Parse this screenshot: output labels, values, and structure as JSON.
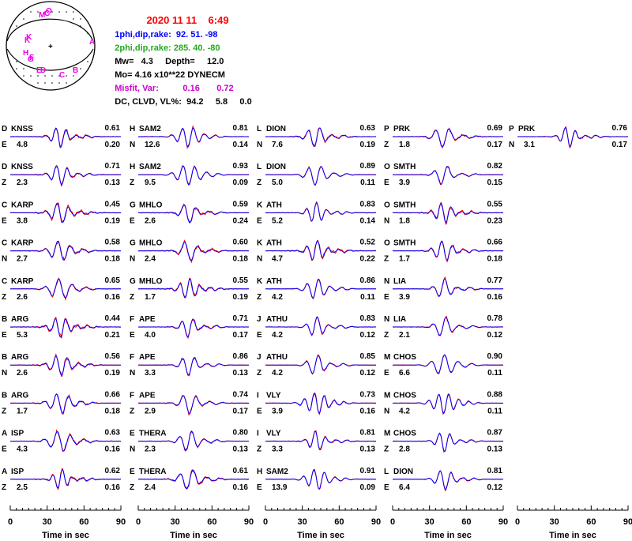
{
  "header": {
    "title_date": "2020 11 11",
    "title_time": "6:49",
    "np1_label": "1phi,dip,rake:",
    "np1_values": "92. 51. -98",
    "np2_label": "2phi,dip,rake:",
    "np2_values": "285. 40. -80",
    "mw_label": "Mw=",
    "mw_value": "4.3",
    "depth_label": "Depth=",
    "depth_value": "12.0",
    "mo_label": "Mo=",
    "mo_value": "4.16 x10**22 DYNECM",
    "misfit_label": "Misfit, Var:",
    "misfit_value": "0.16",
    "var_value": "0.72",
    "dc_label": "DC, CLVD, VL%:",
    "dc_value": "94.2",
    "clvd_value": "5.8",
    "vl_value": "0.0"
  },
  "beachball": {
    "station_letters": [
      "M",
      "C",
      "O",
      "K",
      "K",
      "A",
      "H",
      "G",
      "F",
      "E",
      "D",
      "C",
      "B"
    ],
    "colors": {
      "stations": "#ee00ee",
      "outline": "#000000"
    }
  },
  "colors": {
    "observed": "#ff0000",
    "synthetic": "#0000ff",
    "title": "#ff0000",
    "np1": "#0000ff",
    "np2": "#22aa22",
    "misfit": "#cc00cc"
  },
  "chart_data": {
    "type": "line",
    "x_axis": {
      "label": "Time in sec",
      "range": [
        0,
        90
      ],
      "ticks": [
        0,
        30,
        60,
        90
      ]
    },
    "columns": [
      [
        {
          "code": "D",
          "station": "KNSS",
          "comp": "E",
          "dist": "4.8",
          "corr": "0.61",
          "shift": "0.20"
        },
        {
          "code": "D",
          "station": "KNSS",
          "comp": "Z",
          "dist": "2.3",
          "corr": "0.71",
          "shift": "0.13"
        },
        {
          "code": "C",
          "station": "KARP",
          "comp": "E",
          "dist": "3.8",
          "corr": "0.45",
          "shift": "0.19"
        },
        {
          "code": "C",
          "station": "KARP",
          "comp": "N",
          "dist": "2.7",
          "corr": "0.58",
          "shift": "0.18"
        },
        {
          "code": "C",
          "station": "KARP",
          "comp": "Z",
          "dist": "2.6",
          "corr": "0.65",
          "shift": "0.16"
        },
        {
          "code": "B",
          "station": "ARG",
          "comp": "E",
          "dist": "5.3",
          "corr": "0.44",
          "shift": "0.21"
        },
        {
          "code": "B",
          "station": "ARG",
          "comp": "N",
          "dist": "2.6",
          "corr": "0.56",
          "shift": "0.19"
        },
        {
          "code": "B",
          "station": "ARG",
          "comp": "Z",
          "dist": "1.7",
          "corr": "0.66",
          "shift": "0.18"
        },
        {
          "code": "A",
          "station": "ISP",
          "comp": "E",
          "dist": "4.3",
          "corr": "0.63",
          "shift": "0.16"
        },
        {
          "code": "A",
          "station": "ISP",
          "comp": "Z",
          "dist": "2.5",
          "corr": "0.62",
          "shift": "0.16"
        }
      ],
      [
        {
          "code": "H",
          "station": "SAM2",
          "comp": "N",
          "dist": "12.6",
          "corr": "0.81",
          "shift": "0.14"
        },
        {
          "code": "H",
          "station": "SAM2",
          "comp": "Z",
          "dist": "9.5",
          "corr": "0.93",
          "shift": "0.09"
        },
        {
          "code": "G",
          "station": "MHLO",
          "comp": "E",
          "dist": "2.6",
          "corr": "0.59",
          "shift": "0.24"
        },
        {
          "code": "G",
          "station": "MHLO",
          "comp": "N",
          "dist": "2.4",
          "corr": "0.60",
          "shift": "0.18"
        },
        {
          "code": "G",
          "station": "MHLO",
          "comp": "Z",
          "dist": "1.7",
          "corr": "0.55",
          "shift": "0.19"
        },
        {
          "code": "F",
          "station": "APE",
          "comp": "E",
          "dist": "4.0",
          "corr": "0.71",
          "shift": "0.17"
        },
        {
          "code": "F",
          "station": "APE",
          "comp": "N",
          "dist": "3.3",
          "corr": "0.86",
          "shift": "0.13"
        },
        {
          "code": "F",
          "station": "APE",
          "comp": "Z",
          "dist": "2.9",
          "corr": "0.74",
          "shift": "0.17"
        },
        {
          "code": "E",
          "station": "THERA",
          "comp": "N",
          "dist": "2.3",
          "corr": "0.80",
          "shift": "0.13"
        },
        {
          "code": "E",
          "station": "THERA",
          "comp": "Z",
          "dist": "2.4",
          "corr": "0.61",
          "shift": "0.16"
        }
      ],
      [
        {
          "code": "L",
          "station": "DION",
          "comp": "N",
          "dist": "7.6",
          "corr": "0.63",
          "shift": "0.19"
        },
        {
          "code": "L",
          "station": "DION",
          "comp": "Z",
          "dist": "5.0",
          "corr": "0.89",
          "shift": "0.11"
        },
        {
          "code": "K",
          "station": "ATH",
          "comp": "E",
          "dist": "5.2",
          "corr": "0.83",
          "shift": "0.14"
        },
        {
          "code": "K",
          "station": "ATH",
          "comp": "N",
          "dist": "4.7",
          "corr": "0.52",
          "shift": "0.22"
        },
        {
          "code": "K",
          "station": "ATH",
          "comp": "Z",
          "dist": "4.2",
          "corr": "0.86",
          "shift": "0.11"
        },
        {
          "code": "J",
          "station": "ATHU",
          "comp": "E",
          "dist": "4.2",
          "corr": "0.83",
          "shift": "0.12"
        },
        {
          "code": "J",
          "station": "ATHU",
          "comp": "Z",
          "dist": "4.2",
          "corr": "0.85",
          "shift": "0.12"
        },
        {
          "code": "I",
          "station": "VLY",
          "comp": "E",
          "dist": "3.9",
          "corr": "0.73",
          "shift": "0.16"
        },
        {
          "code": "I",
          "station": "VLY",
          "comp": "Z",
          "dist": "3.3",
          "corr": "0.81",
          "shift": "0.13"
        },
        {
          "code": "H",
          "station": "SAM2",
          "comp": "E",
          "dist": "13.9",
          "corr": "0.91",
          "shift": "0.09"
        }
      ],
      [
        {
          "code": "P",
          "station": "PRK",
          "comp": "Z",
          "dist": "1.8",
          "corr": "0.69",
          "shift": "0.17"
        },
        {
          "code": "O",
          "station": "SMTH",
          "comp": "E",
          "dist": "3.9",
          "corr": "0.82",
          "shift": "0.15"
        },
        {
          "code": "O",
          "station": "SMTH",
          "comp": "N",
          "dist": "1.8",
          "corr": "0.55",
          "shift": "0.23"
        },
        {
          "code": "O",
          "station": "SMTH",
          "comp": "Z",
          "dist": "1.7",
          "corr": "0.66",
          "shift": "0.18"
        },
        {
          "code": "N",
          "station": "LIA",
          "comp": "E",
          "dist": "3.9",
          "corr": "0.77",
          "shift": "0.16"
        },
        {
          "code": "N",
          "station": "LIA",
          "comp": "Z",
          "dist": "2.1",
          "corr": "0.78",
          "shift": "0.12"
        },
        {
          "code": "M",
          "station": "CHOS",
          "comp": "E",
          "dist": "6.6",
          "corr": "0.90",
          "shift": "0.11"
        },
        {
          "code": "M",
          "station": "CHOS",
          "comp": "N",
          "dist": "4.2",
          "corr": "0.88",
          "shift": "0.11"
        },
        {
          "code": "M",
          "station": "CHOS",
          "comp": "Z",
          "dist": "2.8",
          "corr": "0.87",
          "shift": "0.13"
        },
        {
          "code": "L",
          "station": "DION",
          "comp": "E",
          "dist": "6.4",
          "corr": "0.81",
          "shift": "0.12"
        }
      ],
      [
        {
          "code": "P",
          "station": "PRK",
          "comp": "N",
          "dist": "3.1",
          "corr": "0.76",
          "shift": "0.17"
        }
      ]
    ]
  }
}
